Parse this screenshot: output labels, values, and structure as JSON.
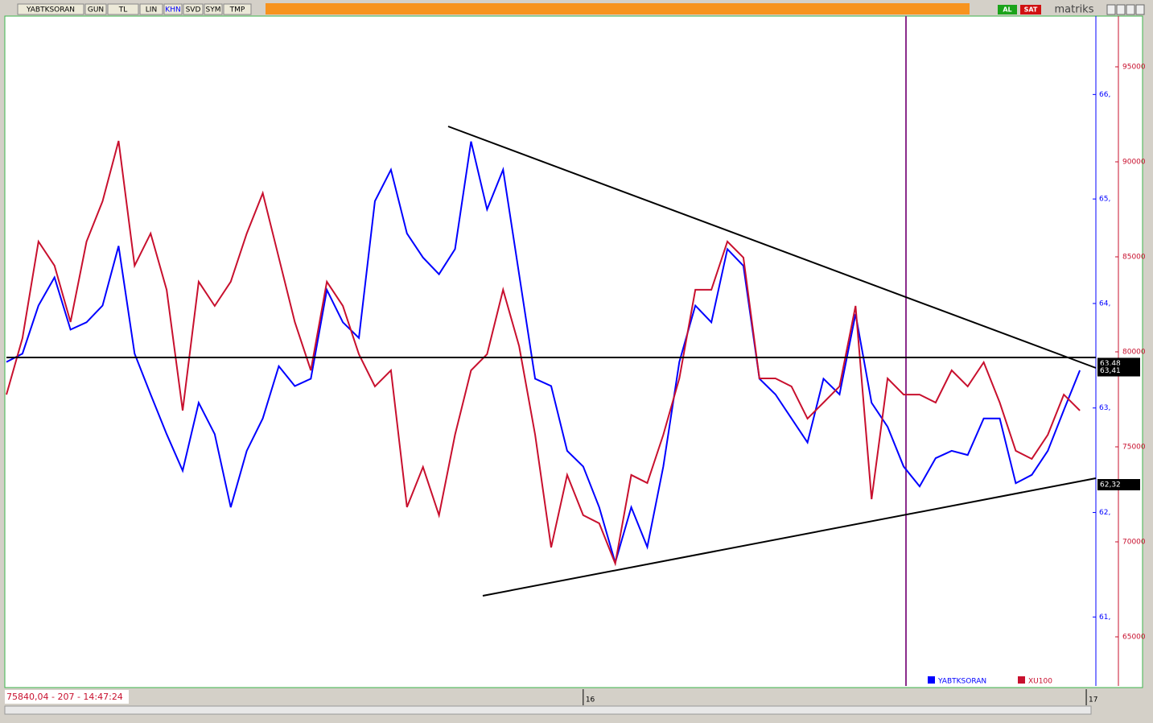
{
  "toolbar": {
    "buttons": [
      "YABTKSORAN",
      "GUN",
      "TL",
      "LIN",
      "KHN",
      "SVD",
      "SYM",
      "TMP"
    ],
    "buy": "AL",
    "sell": "SAT",
    "brand": "matriks"
  },
  "status_bar": "75840,04 - 207 - 14:47:24",
  "chart_data": {
    "type": "line",
    "x": [
      0,
      1,
      2,
      3,
      4,
      5,
      6,
      7,
      8,
      9,
      10,
      11,
      12,
      13,
      14,
      15,
      16,
      17,
      18,
      19,
      20,
      21,
      22,
      23,
      24,
      25,
      26,
      27,
      28,
      29,
      30,
      31,
      32,
      33,
      34,
      35,
      36,
      37,
      38,
      39,
      40,
      41,
      42,
      43,
      44,
      45,
      46,
      47,
      48,
      49,
      50,
      51,
      52,
      53,
      54,
      55,
      56,
      57,
      58,
      59,
      60,
      61,
      62,
      63,
      64,
      65,
      66,
      67
    ],
    "xlim": [
      0,
      68
    ],
    "xticks": [
      {
        "value": 36,
        "label": "16"
      },
      {
        "value": 67.4,
        "label": "17"
      }
    ],
    "series": [
      {
        "name": "YABTKSORAN",
        "color": "#0000ff",
        "axis": "y",
        "values": [
          63.44,
          63.52,
          63.98,
          64.25,
          63.75,
          63.82,
          63.98,
          64.55,
          63.52,
          63.13,
          62.75,
          62.4,
          63.05,
          62.75,
          62.05,
          62.59,
          62.9,
          63.4,
          63.21,
          63.28,
          64.13,
          63.82,
          63.67,
          64.98,
          65.28,
          64.67,
          64.44,
          64.28,
          64.52,
          65.55,
          64.9,
          65.28,
          64.28,
          63.28,
          63.21,
          62.59,
          62.44,
          62.05,
          61.52,
          62.05,
          61.67,
          62.44,
          63.44,
          63.98,
          63.82,
          64.52,
          64.36,
          63.28,
          63.13,
          62.9,
          62.67,
          63.28,
          63.13,
          63.9,
          63.05,
          62.82,
          62.44,
          62.25,
          62.52,
          62.59,
          62.55,
          62.9,
          62.9,
          62.28,
          62.36,
          62.59,
          62.98,
          63.36
        ]
      },
      {
        "name": "XU100",
        "color": "#c8102e",
        "axis": "y2",
        "values": [
          77750,
          80720,
          85805,
          84535,
          81570,
          85805,
          87925,
          91100,
          84535,
          86230,
          83265,
          76910,
          83690,
          82415,
          83690,
          86230,
          88350,
          84960,
          81570,
          79025,
          83690,
          82415,
          79875,
          78180,
          79025,
          71825,
          73940,
          71400,
          75635,
          79025,
          79875,
          83265,
          80300,
          75635,
          69705,
          73520,
          71400,
          70975,
          68860,
          73520,
          73095,
          75635,
          78600,
          83265,
          83265,
          85805,
          84960,
          78600,
          78600,
          78180,
          76485,
          77330,
          78180,
          82415,
          72245,
          78600,
          77750,
          77750,
          77330,
          79025,
          78180,
          79450,
          77330,
          74790,
          74365,
          75635,
          77750,
          76910
        ]
      }
    ],
    "ylim": [
      60.34,
      66.75
    ],
    "yticks": [
      {
        "value": 66,
        "label": "66,"
      },
      {
        "value": 65,
        "label": "65,"
      },
      {
        "value": 64,
        "label": "64,"
      },
      {
        "value": 63,
        "label": "63,"
      },
      {
        "value": 62,
        "label": "62,"
      },
      {
        "value": 61,
        "label": "61,"
      }
    ],
    "y2lim": [
      62415,
      97669
    ],
    "y2ticks": [
      95000,
      90000,
      85000,
      80000,
      75000,
      70000,
      65000
    ],
    "price_labels": [
      {
        "value": 63.48,
        "label": "63,48"
      },
      {
        "value": 63.41,
        "label": "63,41"
      },
      {
        "value": 62.32,
        "label": "62,32"
      }
    ]
  }
}
